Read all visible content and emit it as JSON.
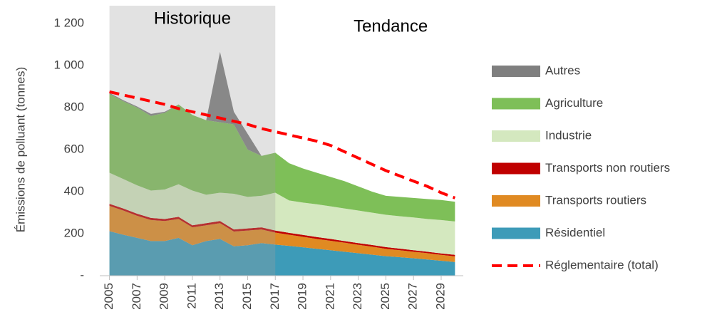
{
  "chart_data": {
    "type": "stacked_area",
    "y_label": "Émissions de polluant (tonnes)",
    "historic_label": "Historique",
    "trend_label": "Tendance",
    "historic_span": [
      2005,
      2017
    ],
    "x": [
      2005,
      2006,
      2007,
      2008,
      2009,
      2010,
      2011,
      2012,
      2013,
      2014,
      2015,
      2016,
      2017,
      2018,
      2019,
      2020,
      2021,
      2022,
      2023,
      2024,
      2025,
      2026,
      2027,
      2028,
      2029,
      2030
    ],
    "series": [
      {
        "name": "Résidentiel",
        "color": "#3d9bb8",
        "values": [
          212,
          195,
          180,
          165,
          165,
          180,
          145,
          165,
          175,
          140,
          145,
          155,
          148,
          142,
          135,
          128,
          121,
          114,
          107,
          100,
          93,
          88,
          83,
          77,
          71,
          65
        ]
      },
      {
        "name": "Transports routiers",
        "color": "#e08a22",
        "values": [
          120,
          115,
          105,
          100,
          95,
          90,
          85,
          75,
          75,
          70,
          70,
          65,
          57,
          53,
          50,
          47,
          45,
          43,
          40,
          38,
          35,
          33,
          31,
          30,
          28,
          27
        ]
      },
      {
        "name": "Transports non routiers",
        "color": "#c00000",
        "values": [
          10,
          10,
          10,
          10,
          10,
          10,
          10,
          10,
          10,
          10,
          10,
          10,
          10,
          9,
          9,
          9,
          9,
          8,
          8,
          8,
          8,
          8,
          7,
          7,
          7,
          7
        ]
      },
      {
        "name": "Industrie",
        "color": "#d4e8bf",
        "values": [
          148,
          140,
          135,
          130,
          140,
          155,
          165,
          135,
          135,
          170,
          150,
          150,
          180,
          154,
          154,
          156,
          155,
          155,
          155,
          154,
          154,
          154,
          156,
          156,
          159,
          159
        ]
      },
      {
        "name": "Agriculture",
        "color": "#7ebf58",
        "values": [
          375,
          370,
          370,
          355,
          365,
          380,
          360,
          355,
          335,
          330,
          225,
          190,
          190,
          177,
          162,
          150,
          140,
          130,
          115,
          100,
          90,
          92,
          93,
          95,
          95,
          94
        ]
      },
      {
        "name": "Autres",
        "color": "#7f7f7f",
        "values": [
          5,
          5,
          5,
          10,
          5,
          0,
          0,
          0,
          335,
          60,
          75,
          0,
          0,
          0,
          0,
          0,
          0,
          0,
          0,
          0,
          0,
          0,
          0,
          0,
          0,
          0
        ]
      }
    ],
    "line": {
      "name": "Réglementaire (total)",
      "color": "#ff0000",
      "values": [
        875,
        860,
        845,
        830,
        815,
        795,
        780,
        765,
        750,
        735,
        720,
        700,
        685,
        670,
        655,
        640,
        620,
        590,
        560,
        530,
        500,
        475,
        450,
        425,
        395,
        370
      ]
    },
    "xlim": [
      2004.3,
      2030.6
    ],
    "xticks": [
      2005,
      2007,
      2009,
      2011,
      2013,
      2015,
      2017,
      2019,
      2021,
      2023,
      2025,
      2027,
      2029
    ],
    "ylim": [
      0,
      1200
    ],
    "yticks": [
      {
        "value": 0,
        "label": "-"
      },
      200,
      400,
      600,
      800,
      {
        "value": 1000,
        "label": "1 000"
      },
      {
        "value": 1200,
        "label": "1 200"
      }
    ]
  }
}
